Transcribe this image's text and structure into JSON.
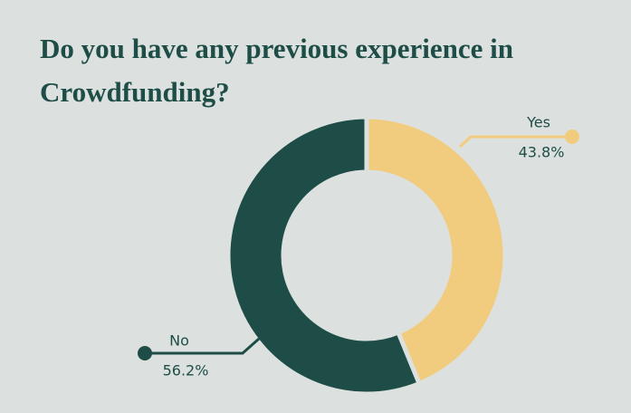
{
  "chart_data": {
    "type": "donut",
    "title": "Do you have any previous experience in Crowdfunding?",
    "categories": [
      "Yes",
      "No"
    ],
    "values": [
      43.8,
      56.2
    ],
    "value_labels": [
      "43.8%",
      "56.2%"
    ],
    "colors": [
      "#f2cc7e",
      "#1e4d47"
    ]
  }
}
